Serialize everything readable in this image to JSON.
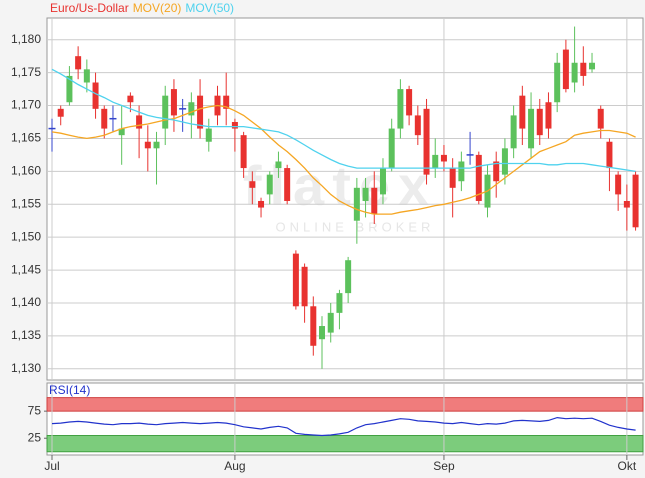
{
  "chart_data": {
    "type": "candlestick",
    "legend": [
      {
        "name": "Euro/Us-Dollar",
        "color": "#e8322f"
      },
      {
        "name": "MOV(20)",
        "color": "#f5a623"
      },
      {
        "name": "MOV(50)",
        "color": "#4fd2ee"
      }
    ],
    "watermark": {
      "logo": "flatex",
      "tagline": "ONLINE BROKER"
    },
    "categories": [
      "Jul",
      null,
      null,
      null,
      null,
      null,
      null,
      null,
      null,
      null,
      null,
      null,
      null,
      null,
      null,
      null,
      null,
      null,
      null,
      null,
      null,
      "Aug",
      null,
      null,
      null,
      null,
      null,
      null,
      null,
      null,
      null,
      null,
      null,
      null,
      null,
      null,
      null,
      null,
      null,
      null,
      null,
      null,
      null,
      null,
      null,
      "Sep",
      null,
      null,
      null,
      null,
      null,
      null,
      null,
      null,
      null,
      null,
      null,
      null,
      null,
      null,
      null,
      null,
      null,
      null,
      null,
      null,
      "Okt",
      null
    ],
    "ylim": [
      1.1283,
      1.1833
    ],
    "yticks": [
      {
        "value": 1.13,
        "label": "1,130"
      },
      {
        "value": 1.135,
        "label": "1,135"
      },
      {
        "value": 1.14,
        "label": "1,140"
      },
      {
        "value": 1.145,
        "label": "1,145"
      },
      {
        "value": 1.15,
        "label": "1,150"
      },
      {
        "value": 1.155,
        "label": "1,155"
      },
      {
        "value": 1.16,
        "label": "1,160"
      },
      {
        "value": 1.165,
        "label": "1,165"
      },
      {
        "value": 1.17,
        "label": "1,170"
      },
      {
        "value": 1.175,
        "label": "1,175"
      },
      {
        "value": 1.18,
        "label": "1,180"
      }
    ],
    "grid": true,
    "up_color": "#5cc15c",
    "down_color": "#e8322f",
    "doji_color": "#3344cc",
    "open": [
      1.1665,
      1.1695,
      1.1705,
      1.1775,
      1.1735,
      1.1735,
      1.1695,
      1.168,
      1.1655,
      1.1715,
      1.1685,
      1.1645,
      1.1635,
      1.1665,
      1.1725,
      1.1695,
      1.1685,
      1.1715,
      1.1645,
      1.1715,
      1.1715,
      1.1675,
      1.1655,
      1.1585,
      1.1555,
      1.1565,
      1.1605,
      1.1605,
      1.1475,
      1.1455,
      1.1395,
      1.1345,
      1.1355,
      1.1385,
      1.1415,
      1.1525,
      1.1555,
      1.1575,
      1.1565,
      1.1605,
      1.1665,
      1.1725,
      1.1685,
      1.1695,
      1.1605,
      1.1625,
      1.1605,
      1.1585,
      1.1625,
      1.1625,
      1.1545,
      1.1615,
      1.1595,
      1.1635,
      1.1715,
      1.1635,
      1.1695,
      1.1705,
      1.1705,
      1.1785,
      1.1735,
      1.1765,
      1.1755,
      1.1695,
      1.1645,
      1.1595,
      1.1555,
      1.1595
    ],
    "high": [
      1.168,
      1.17,
      1.176,
      1.179,
      1.177,
      1.175,
      1.17,
      1.17,
      1.17,
      1.172,
      1.17,
      1.167,
      1.166,
      1.173,
      1.174,
      1.171,
      1.172,
      1.174,
      1.168,
      1.173,
      1.175,
      1.168,
      1.166,
      1.16,
      1.156,
      1.16,
      1.163,
      1.161,
      1.148,
      1.146,
      1.141,
      1.138,
      1.14,
      1.142,
      1.147,
      1.159,
      1.159,
      1.16,
      1.162,
      1.168,
      1.174,
      1.173,
      1.17,
      1.171,
      1.165,
      1.164,
      1.162,
      1.163,
      1.166,
      1.163,
      1.161,
      1.163,
      1.165,
      1.17,
      1.173,
      1.172,
      1.171,
      1.172,
      1.178,
      1.18,
      1.182,
      1.179,
      1.178,
      1.17,
      1.165,
      1.16,
      1.158,
      1.16
    ],
    "low": [
      1.163,
      1.167,
      1.17,
      1.174,
      1.172,
      1.168,
      1.165,
      1.166,
      1.161,
      1.169,
      1.162,
      1.16,
      1.158,
      1.164,
      1.166,
      1.166,
      1.165,
      1.165,
      1.163,
      1.167,
      1.167,
      1.163,
      1.159,
      1.155,
      1.153,
      1.155,
      1.159,
      1.155,
      1.139,
      1.137,
      1.132,
      1.13,
      1.134,
      1.136,
      1.14,
      1.149,
      1.153,
      1.152,
      1.155,
      1.16,
      1.165,
      1.167,
      1.164,
      1.158,
      1.159,
      1.16,
      1.153,
      1.157,
      1.161,
      1.155,
      1.153,
      1.156,
      1.158,
      1.162,
      1.164,
      1.162,
      1.164,
      1.165,
      1.169,
      1.172,
      1.172,
      1.173,
      1.175,
      1.165,
      1.157,
      1.154,
      1.151,
      1.151
    ],
    "close": [
      1.1665,
      1.1683,
      1.1745,
      1.1755,
      1.1755,
      1.1695,
      1.1665,
      1.168,
      1.1665,
      1.1705,
      1.1665,
      1.1635,
      1.1645,
      1.1715,
      1.1685,
      1.1695,
      1.1705,
      1.1665,
      1.1665,
      1.1685,
      1.1695,
      1.1665,
      1.1605,
      1.1575,
      1.1545,
      1.1595,
      1.1615,
      1.1555,
      1.1395,
      1.1395,
      1.1335,
      1.1365,
      1.1385,
      1.1415,
      1.1465,
      1.1575,
      1.1575,
      1.1535,
      1.1605,
      1.1665,
      1.1725,
      1.1685,
      1.1655,
      1.1595,
      1.1625,
      1.1615,
      1.1575,
      1.1615,
      1.1625,
      1.1555,
      1.1595,
      1.1585,
      1.1635,
      1.1685,
      1.1665,
      1.1695,
      1.1655,
      1.1665,
      1.1765,
      1.1725,
      1.1765,
      1.1745,
      1.1765,
      1.1665,
      1.1605,
      1.1565,
      1.1545,
      1.1515
    ],
    "series": [
      {
        "name": "MOV(20)",
        "color": "#f5a623",
        "values": [
          1.166,
          1.1658,
          1.1655,
          1.1652,
          1.165,
          1.1652,
          1.1655,
          1.166,
          1.1665,
          1.1668,
          1.167,
          1.1672,
          1.1675,
          1.1678,
          1.168,
          1.1685,
          1.169,
          1.1695,
          1.1698,
          1.17,
          1.1698,
          1.1692,
          1.1685,
          1.1675,
          1.1665,
          1.1652,
          1.164,
          1.163,
          1.1618,
          1.1605,
          1.159,
          1.1578,
          1.1565,
          1.1555,
          1.1548,
          1.1542,
          1.1538,
          1.1535,
          1.1535,
          1.1535,
          1.1538,
          1.154,
          1.1542,
          1.1545,
          1.1548,
          1.155,
          1.1553,
          1.1556,
          1.156,
          1.1565,
          1.157,
          1.158,
          1.159,
          1.16,
          1.161,
          1.162,
          1.163,
          1.1635,
          1.164,
          1.1645,
          1.1655,
          1.1658,
          1.166,
          1.1662,
          1.1662,
          1.166,
          1.1658,
          1.1652
        ]
      },
      {
        "name": "MOV(50)",
        "color": "#4fd2ee",
        "values": [
          1.1755,
          1.1748,
          1.174,
          1.1732,
          1.1725,
          1.1718,
          1.1712,
          1.1705,
          1.17,
          1.1695,
          1.169,
          1.1685,
          1.1682,
          1.168,
          1.1678,
          1.1675,
          1.1672,
          1.167,
          1.1668,
          1.1668,
          1.1668,
          1.1668,
          1.1668,
          1.1666,
          1.1664,
          1.1662,
          1.166,
          1.1655,
          1.1648,
          1.164,
          1.1632,
          1.1625,
          1.1618,
          1.1612,
          1.1608,
          1.1605,
          1.1605,
          1.1605,
          1.1605,
          1.1605,
          1.1605,
          1.1605,
          1.1605,
          1.1605,
          1.1605,
          1.1605,
          1.1605,
          1.1605,
          1.1605,
          1.1608,
          1.161,
          1.1612,
          1.1612,
          1.1612,
          1.1612,
          1.1612,
          1.1612,
          1.161,
          1.161,
          1.1612,
          1.1612,
          1.1612,
          1.161,
          1.1608,
          1.1606,
          1.1604,
          1.1602,
          1.16
        ]
      }
    ],
    "rsi": {
      "name": "RSI(14)",
      "color": "#2233cc",
      "ylim": [
        -6,
        127
      ],
      "yticks": [
        75,
        25
      ],
      "overbought": [
        75,
        100
      ],
      "oversold": [
        0,
        30
      ],
      "overbought_color": "#f07c7c",
      "oversold_color": "#7ccc7c",
      "values": [
        52,
        53,
        55,
        56,
        55,
        53,
        51,
        50,
        52,
        52,
        53,
        51,
        50,
        52,
        53,
        54,
        53,
        52,
        53,
        54,
        53,
        50,
        46,
        44,
        42,
        45,
        47,
        44,
        34,
        32,
        31,
        30,
        31,
        33,
        36,
        44,
        50,
        52,
        55,
        58,
        61,
        60,
        57,
        56,
        55,
        53,
        52,
        54,
        52,
        50,
        52,
        51,
        53,
        57,
        58,
        57,
        56,
        58,
        63,
        61,
        62,
        61,
        62,
        56,
        49,
        45,
        42,
        40
      ]
    }
  }
}
